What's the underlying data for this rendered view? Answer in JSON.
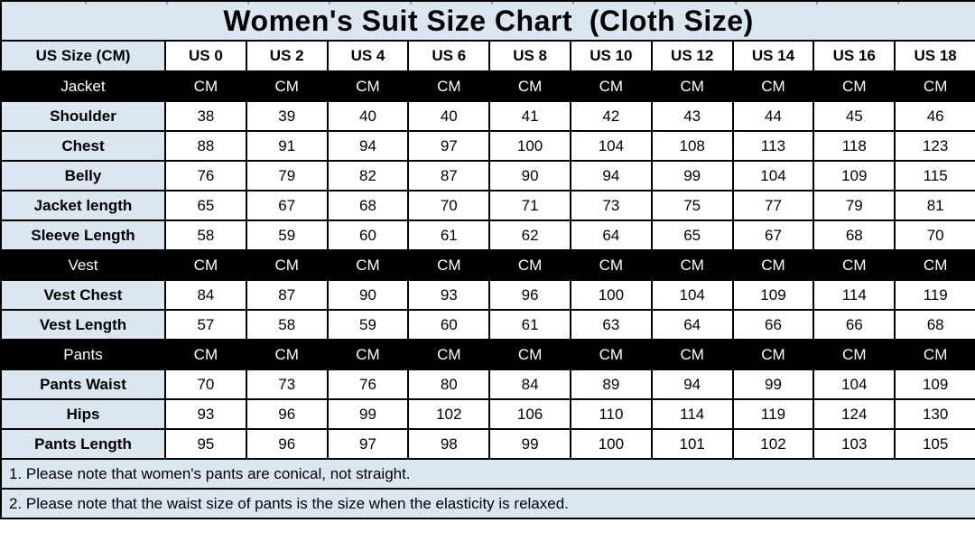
{
  "title": "Women's Suit Size Chart  (Cloth Size)",
  "table": {
    "corner_label": "US Size (CM)",
    "columns": [
      "US 0",
      "US 2",
      "US 4",
      "US 6",
      "US 8",
      "US 10",
      "US 12",
      "US 14",
      "US 16",
      "US 18"
    ],
    "rows": [
      {
        "label": "Jacket",
        "type": "section",
        "values": [
          "CM",
          "CM",
          "CM",
          "CM",
          "CM",
          "CM",
          "CM",
          "CM",
          "CM",
          "CM"
        ]
      },
      {
        "label": "Shoulder",
        "type": "data",
        "values": [
          38,
          39,
          40,
          40,
          41,
          42,
          43,
          44,
          45,
          46
        ]
      },
      {
        "label": "Chest",
        "type": "data",
        "values": [
          88,
          91,
          94,
          97,
          100,
          104,
          108,
          113,
          118,
          123
        ]
      },
      {
        "label": "Belly",
        "type": "data",
        "values": [
          76,
          79,
          82,
          87,
          90,
          94,
          99,
          104,
          109,
          115
        ]
      },
      {
        "label": "Jacket length",
        "type": "data",
        "values": [
          65,
          67,
          68,
          70,
          71,
          73,
          75,
          77,
          79,
          81
        ]
      },
      {
        "label": "Sleeve Length",
        "type": "data",
        "values": [
          58,
          59,
          60,
          61,
          62,
          64,
          65,
          67,
          68,
          70
        ]
      },
      {
        "label": "Vest",
        "type": "section",
        "values": [
          "CM",
          "CM",
          "CM",
          "CM",
          "CM",
          "CM",
          "CM",
          "CM",
          "CM",
          "CM"
        ]
      },
      {
        "label": "Vest Chest",
        "type": "data",
        "values": [
          84,
          87,
          90,
          93,
          96,
          100,
          104,
          109,
          114,
          119
        ]
      },
      {
        "label": "Vest Length",
        "type": "data",
        "values": [
          57,
          58,
          59,
          60,
          61,
          63,
          64,
          66,
          66,
          68
        ]
      },
      {
        "label": "Pants",
        "type": "section",
        "values": [
          "CM",
          "CM",
          "CM",
          "CM",
          "CM",
          "CM",
          "CM",
          "CM",
          "CM",
          "CM"
        ]
      },
      {
        "label": "Pants Waist",
        "type": "data",
        "values": [
          70,
          73,
          76,
          80,
          84,
          89,
          94,
          99,
          104,
          109
        ]
      },
      {
        "label": "Hips",
        "type": "data",
        "values": [
          93,
          96,
          99,
          102,
          106,
          110,
          114,
          119,
          124,
          130
        ]
      },
      {
        "label": "Pants Length",
        "type": "data",
        "values": [
          95,
          96,
          97,
          98,
          99,
          100,
          101,
          102,
          103,
          105
        ]
      }
    ]
  },
  "notes": [
    "1. Please note that women's pants are conical, not straight.",
    "2. Please note that the waist size of pants is the size when the elasticity is relaxed."
  ],
  "colors": {
    "accent_bg": "#dce6f1",
    "section_bg": "#000000",
    "section_text": "#ffffff",
    "cell_bg": "#ffffff",
    "border": "#000000",
    "text": "#000000"
  }
}
